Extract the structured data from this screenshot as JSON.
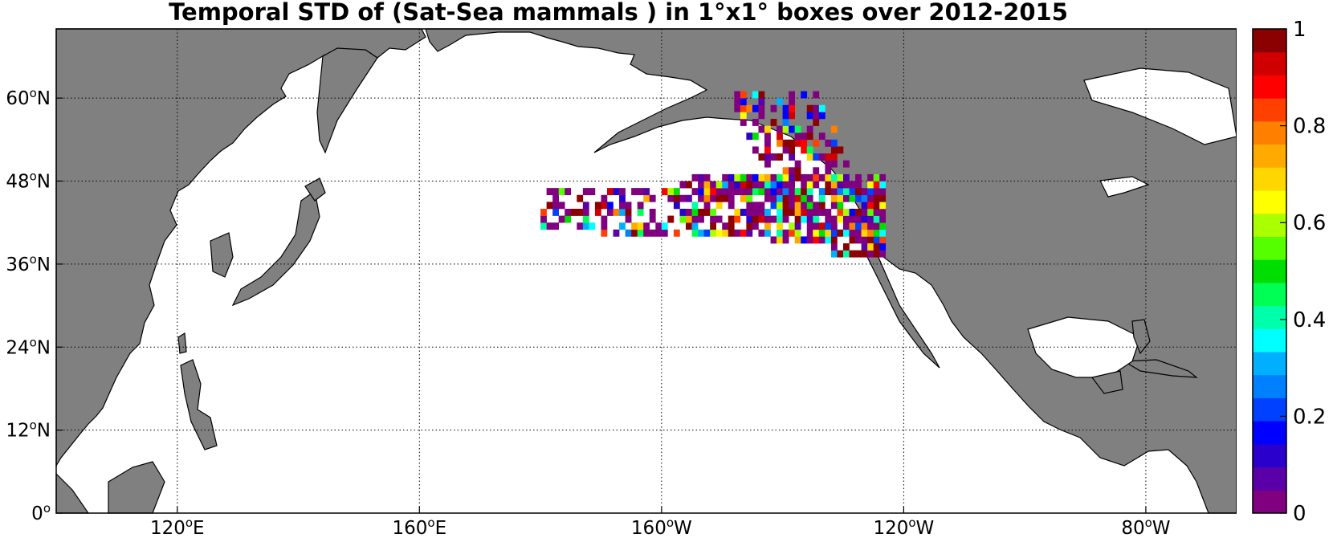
{
  "title": "Temporal STD of (Sat-Sea mammals ) in 1°x1° boxes over 2012-2015",
  "map": {
    "lon_range": [
      100,
      295
    ],
    "lat_range": [
      0,
      70
    ],
    "land_color": "#808080",
    "ocean_color": "#ffffff",
    "grid": true,
    "x_ticks": [
      {
        "lon": 120,
        "label": "120",
        "suffix": "E"
      },
      {
        "lon": 160,
        "label": "160",
        "suffix": "E"
      },
      {
        "lon": 200,
        "label": "160",
        "suffix": "W"
      },
      {
        "lon": 240,
        "label": "120",
        "suffix": "W"
      },
      {
        "lon": 280,
        "label": "80",
        "suffix": "W"
      }
    ],
    "y_ticks": [
      {
        "lat": 0,
        "label": "0",
        "suffix": ""
      },
      {
        "lat": 12,
        "label": "12",
        "suffix": "N"
      },
      {
        "lat": 24,
        "label": "24",
        "suffix": "N"
      },
      {
        "lat": 36,
        "label": "36",
        "suffix": "N"
      },
      {
        "lat": 48,
        "label": "48",
        "suffix": "N"
      },
      {
        "lat": 60,
        "label": "60",
        "suffix": "N"
      }
    ]
  },
  "colorbar": {
    "min": 0,
    "max": 1,
    "ticks": [
      {
        "value": 0,
        "label": "0"
      },
      {
        "value": 0.2,
        "label": "0.2"
      },
      {
        "value": 0.4,
        "label": "0.4"
      },
      {
        "value": 0.6,
        "label": "0.6"
      },
      {
        "value": 0.8,
        "label": "0.8"
      },
      {
        "value": 1,
        "label": "1"
      }
    ],
    "colors": [
      "#800080",
      "#5a00a8",
      "#2a00cc",
      "#0000ff",
      "#0040ff",
      "#0080ff",
      "#00b0ff",
      "#00ffff",
      "#00ffaa",
      "#00ff55",
      "#00dd00",
      "#55ff00",
      "#aaff00",
      "#ffff00",
      "#ffd700",
      "#ffaa00",
      "#ff8000",
      "#ff4000",
      "#ff0000",
      "#d00000",
      "#8b0000"
    ]
  },
  "chart_data": {
    "type": "heatmap",
    "cell_size_deg": 1,
    "value_range": [
      0,
      1
    ],
    "cells": []
  }
}
